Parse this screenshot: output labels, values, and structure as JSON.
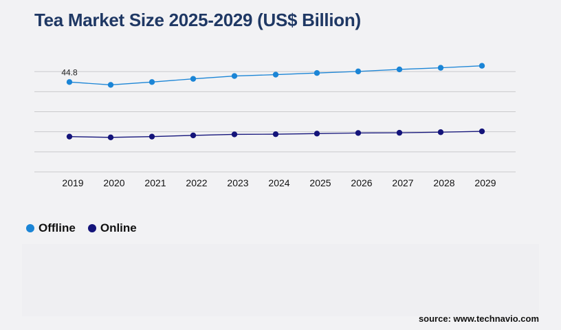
{
  "title": "Tea Market Size 2025-2029 (US$ Billion)",
  "source": "source: www.technavio.com",
  "colors": {
    "offline": "#1b85d6",
    "online": "#14147a",
    "title": "#1f3864",
    "grid": "#c9c9cc"
  },
  "chart_data": {
    "type": "line",
    "x": [
      "2019",
      "2020",
      "2021",
      "2022",
      "2023",
      "2024",
      "2025",
      "2026",
      "2027",
      "2028",
      "2029"
    ],
    "ylim": [
      0,
      60
    ],
    "grid": true,
    "legend_position": "bottom-left",
    "series": [
      {
        "name": "Offline",
        "color": "#1b85d6",
        "values": [
          44.8,
          43.4,
          44.8,
          46.4,
          47.8,
          48.5,
          49.3,
          50.1,
          51.1,
          51.9,
          52.9
        ],
        "data_labels": [
          "44.8",
          "",
          "",
          "",
          "",
          "",
          "",
          "",
          "",
          "",
          ""
        ]
      },
      {
        "name": "Online",
        "color": "#14147a",
        "values": [
          17.6,
          17.2,
          17.6,
          18.2,
          18.7,
          18.8,
          19.1,
          19.4,
          19.5,
          19.8,
          20.2
        ],
        "data_labels": [
          "",
          "",
          "",
          "",
          "",
          "",
          "",
          "",
          "",
          "",
          ""
        ]
      }
    ]
  }
}
